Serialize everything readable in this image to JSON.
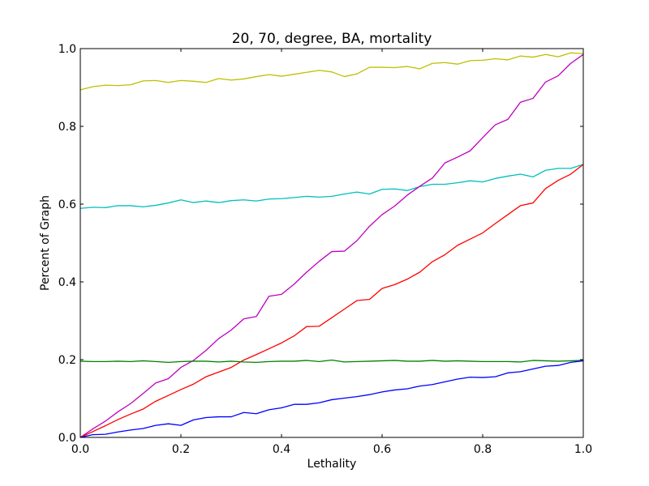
{
  "chart_data": {
    "type": "line",
    "title": "20, 70, degree, BA, mortality",
    "xlabel": "Lethality",
    "ylabel": "Percent of Graph",
    "xlim": [
      0.0,
      1.0
    ],
    "ylim": [
      0.0,
      1.0
    ],
    "xticks": [
      "0.0",
      "0.2",
      "0.4",
      "0.6",
      "0.8",
      "1.0"
    ],
    "yticks": [
      "0.0",
      "0.2",
      "0.4",
      "0.6",
      "0.8",
      "1.0"
    ],
    "grid": false,
    "legend": "none",
    "x": [
      0.0,
      0.025,
      0.05,
      0.075,
      0.1,
      0.125,
      0.15,
      0.175,
      0.2,
      0.225,
      0.25,
      0.275,
      0.3,
      0.325,
      0.35,
      0.375,
      0.4,
      0.425,
      0.45,
      0.475,
      0.5,
      0.525,
      0.55,
      0.575,
      0.6,
      0.625,
      0.65,
      0.675,
      0.7,
      0.725,
      0.75,
      0.775,
      0.8,
      0.825,
      0.85,
      0.875,
      0.9,
      0.925,
      0.95,
      0.975,
      1.0
    ],
    "series": [
      {
        "color": "#bfbf00",
        "values": [
          0.894,
          0.902,
          0.906,
          0.905,
          0.907,
          0.917,
          0.918,
          0.913,
          0.918,
          0.916,
          0.913,
          0.923,
          0.919,
          0.922,
          0.928,
          0.933,
          0.929,
          0.934,
          0.939,
          0.944,
          0.94,
          0.928,
          0.935,
          0.952,
          0.952,
          0.951,
          0.954,
          0.948,
          0.962,
          0.964,
          0.96,
          0.969,
          0.97,
          0.974,
          0.971,
          0.981,
          0.978,
          0.985,
          0.979,
          0.989,
          0.987
        ]
      },
      {
        "color": "#00bfbf",
        "values": [
          0.589,
          0.592,
          0.591,
          0.596,
          0.596,
          0.593,
          0.597,
          0.603,
          0.611,
          0.604,
          0.608,
          0.604,
          0.609,
          0.611,
          0.608,
          0.613,
          0.614,
          0.617,
          0.62,
          0.618,
          0.62,
          0.626,
          0.631,
          0.626,
          0.638,
          0.639,
          0.635,
          0.645,
          0.651,
          0.651,
          0.655,
          0.66,
          0.657,
          0.666,
          0.672,
          0.677,
          0.67,
          0.687,
          0.692,
          0.692,
          0.702
        ]
      },
      {
        "color": "#bf00bf",
        "values": [
          0.0,
          0.022,
          0.042,
          0.066,
          0.087,
          0.113,
          0.14,
          0.151,
          0.18,
          0.198,
          0.224,
          0.254,
          0.276,
          0.305,
          0.311,
          0.363,
          0.368,
          0.394,
          0.425,
          0.453,
          0.478,
          0.479,
          0.506,
          0.543,
          0.573,
          0.595,
          0.623,
          0.646,
          0.667,
          0.706,
          0.721,
          0.737,
          0.771,
          0.804,
          0.818,
          0.862,
          0.872,
          0.914,
          0.93,
          0.962,
          0.985
        ]
      },
      {
        "color": "#ff0000",
        "values": [
          0.0,
          0.015,
          0.03,
          0.046,
          0.06,
          0.073,
          0.093,
          0.108,
          0.123,
          0.137,
          0.156,
          0.168,
          0.18,
          0.199,
          0.213,
          0.228,
          0.243,
          0.261,
          0.285,
          0.286,
          0.308,
          0.33,
          0.352,
          0.355,
          0.383,
          0.393,
          0.407,
          0.425,
          0.452,
          0.47,
          0.494,
          0.51,
          0.526,
          0.55,
          0.573,
          0.596,
          0.603,
          0.64,
          0.661,
          0.677,
          0.702
        ]
      },
      {
        "color": "#008000",
        "values": [
          0.196,
          0.195,
          0.195,
          0.196,
          0.195,
          0.197,
          0.195,
          0.193,
          0.195,
          0.196,
          0.196,
          0.194,
          0.196,
          0.194,
          0.193,
          0.195,
          0.196,
          0.196,
          0.198,
          0.195,
          0.199,
          0.194,
          0.195,
          0.196,
          0.197,
          0.198,
          0.196,
          0.196,
          0.198,
          0.196,
          0.197,
          0.196,
          0.195,
          0.195,
          0.195,
          0.194,
          0.198,
          0.197,
          0.196,
          0.197,
          0.198
        ]
      },
      {
        "color": "#0000ff",
        "values": [
          0.0,
          0.007,
          0.008,
          0.014,
          0.019,
          0.023,
          0.031,
          0.035,
          0.031,
          0.045,
          0.051,
          0.053,
          0.053,
          0.064,
          0.061,
          0.071,
          0.076,
          0.085,
          0.085,
          0.089,
          0.097,
          0.101,
          0.105,
          0.11,
          0.117,
          0.122,
          0.125,
          0.132,
          0.136,
          0.143,
          0.15,
          0.155,
          0.154,
          0.156,
          0.166,
          0.169,
          0.176,
          0.183,
          0.185,
          0.193,
          0.197
        ]
      }
    ]
  }
}
